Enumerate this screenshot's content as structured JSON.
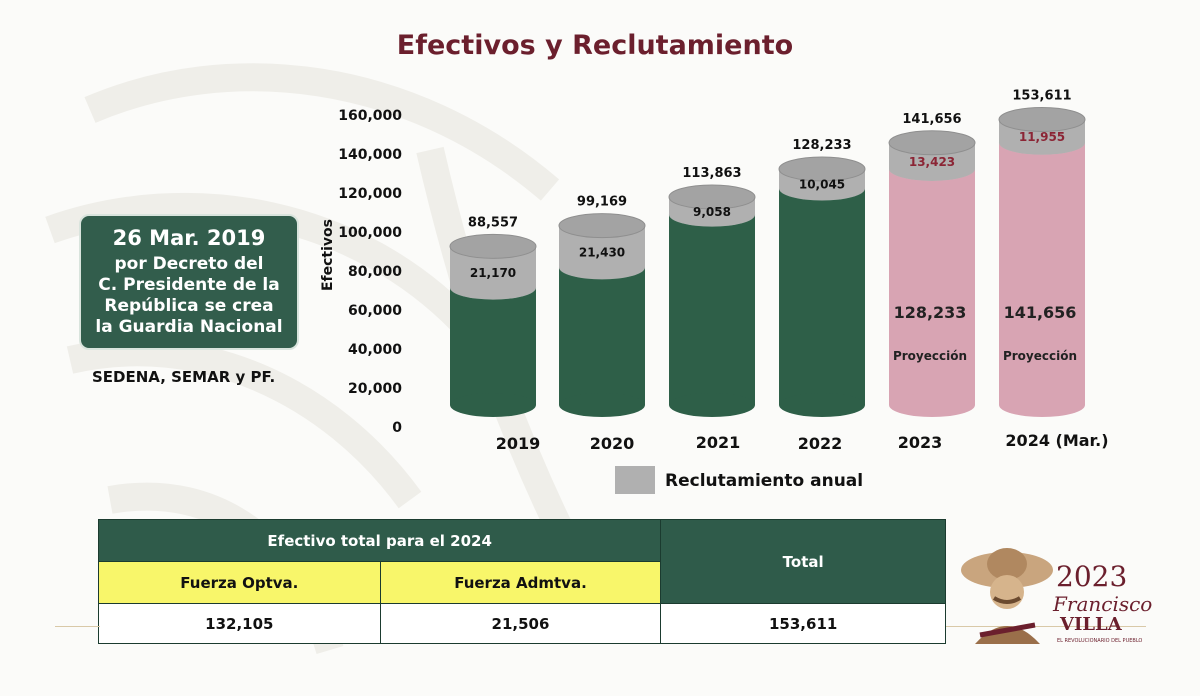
{
  "title": "Efectivos y Reclutamiento",
  "info_box": {
    "date": "26 Mar. 2019",
    "lines": [
      "por Decreto del",
      "C. Presidente de la",
      "República se crea",
      "la Guardia Nacional"
    ]
  },
  "subnote": "SEDENA, SEMAR y PF.",
  "legend": {
    "label": "Reclutamiento anual",
    "color": "#b0b0b0"
  },
  "colors": {
    "actual": "#2e5f48",
    "actual_top": "#3c7a5e",
    "projection": "#d8a4b3",
    "recruitment": "#b0b0b0",
    "projection_label": "#8b2535"
  },
  "chart_data": {
    "type": "bar",
    "ylabel": "Efectivos",
    "ylim": [
      0,
      160000
    ],
    "yticks": [
      "0",
      "20,000",
      "40,000",
      "60,000",
      "80,000",
      "100,000",
      "120,000",
      "140,000",
      "160,000"
    ],
    "categories": [
      "2019",
      "2020",
      "2021",
      "2022",
      "2023",
      "2024 (Mar.)"
    ],
    "totals": [
      88557,
      99169,
      113863,
      128233,
      141656,
      153611
    ],
    "totals_labels": [
      "88,557",
      "99,169",
      "113,863",
      "128,233",
      "141,656",
      "153,611"
    ],
    "recruitment": [
      21170,
      21430,
      9058,
      10045,
      13423,
      11955
    ],
    "recruitment_labels": [
      "21,170",
      "21,430",
      "9,058",
      "10,045",
      "13,423",
      "11,955"
    ],
    "projection": [
      false,
      false,
      false,
      false,
      true,
      true
    ],
    "projection_base_labels": [
      "",
      "",
      "",
      "",
      "128,233",
      "141,656"
    ],
    "projection_text": "Proyección",
    "series": [
      {
        "name": "Reclutamiento anual",
        "values": [
          21170,
          21430,
          9058,
          10045,
          13423,
          11955
        ]
      }
    ]
  },
  "table": {
    "header": "Efectivo total para el 2024",
    "col1": "Fuerza Optva.",
    "col2": "Fuerza Admtva.",
    "total_header": "Total",
    "val1": "132,105",
    "val2": "21,506",
    "total": "153,611"
  },
  "logo": {
    "year": "2023",
    "name_line1": "Francisco",
    "name_line2": "VILLA",
    "tagline": "EL REVOLUCIONARIO DEL PUEBLO"
  }
}
